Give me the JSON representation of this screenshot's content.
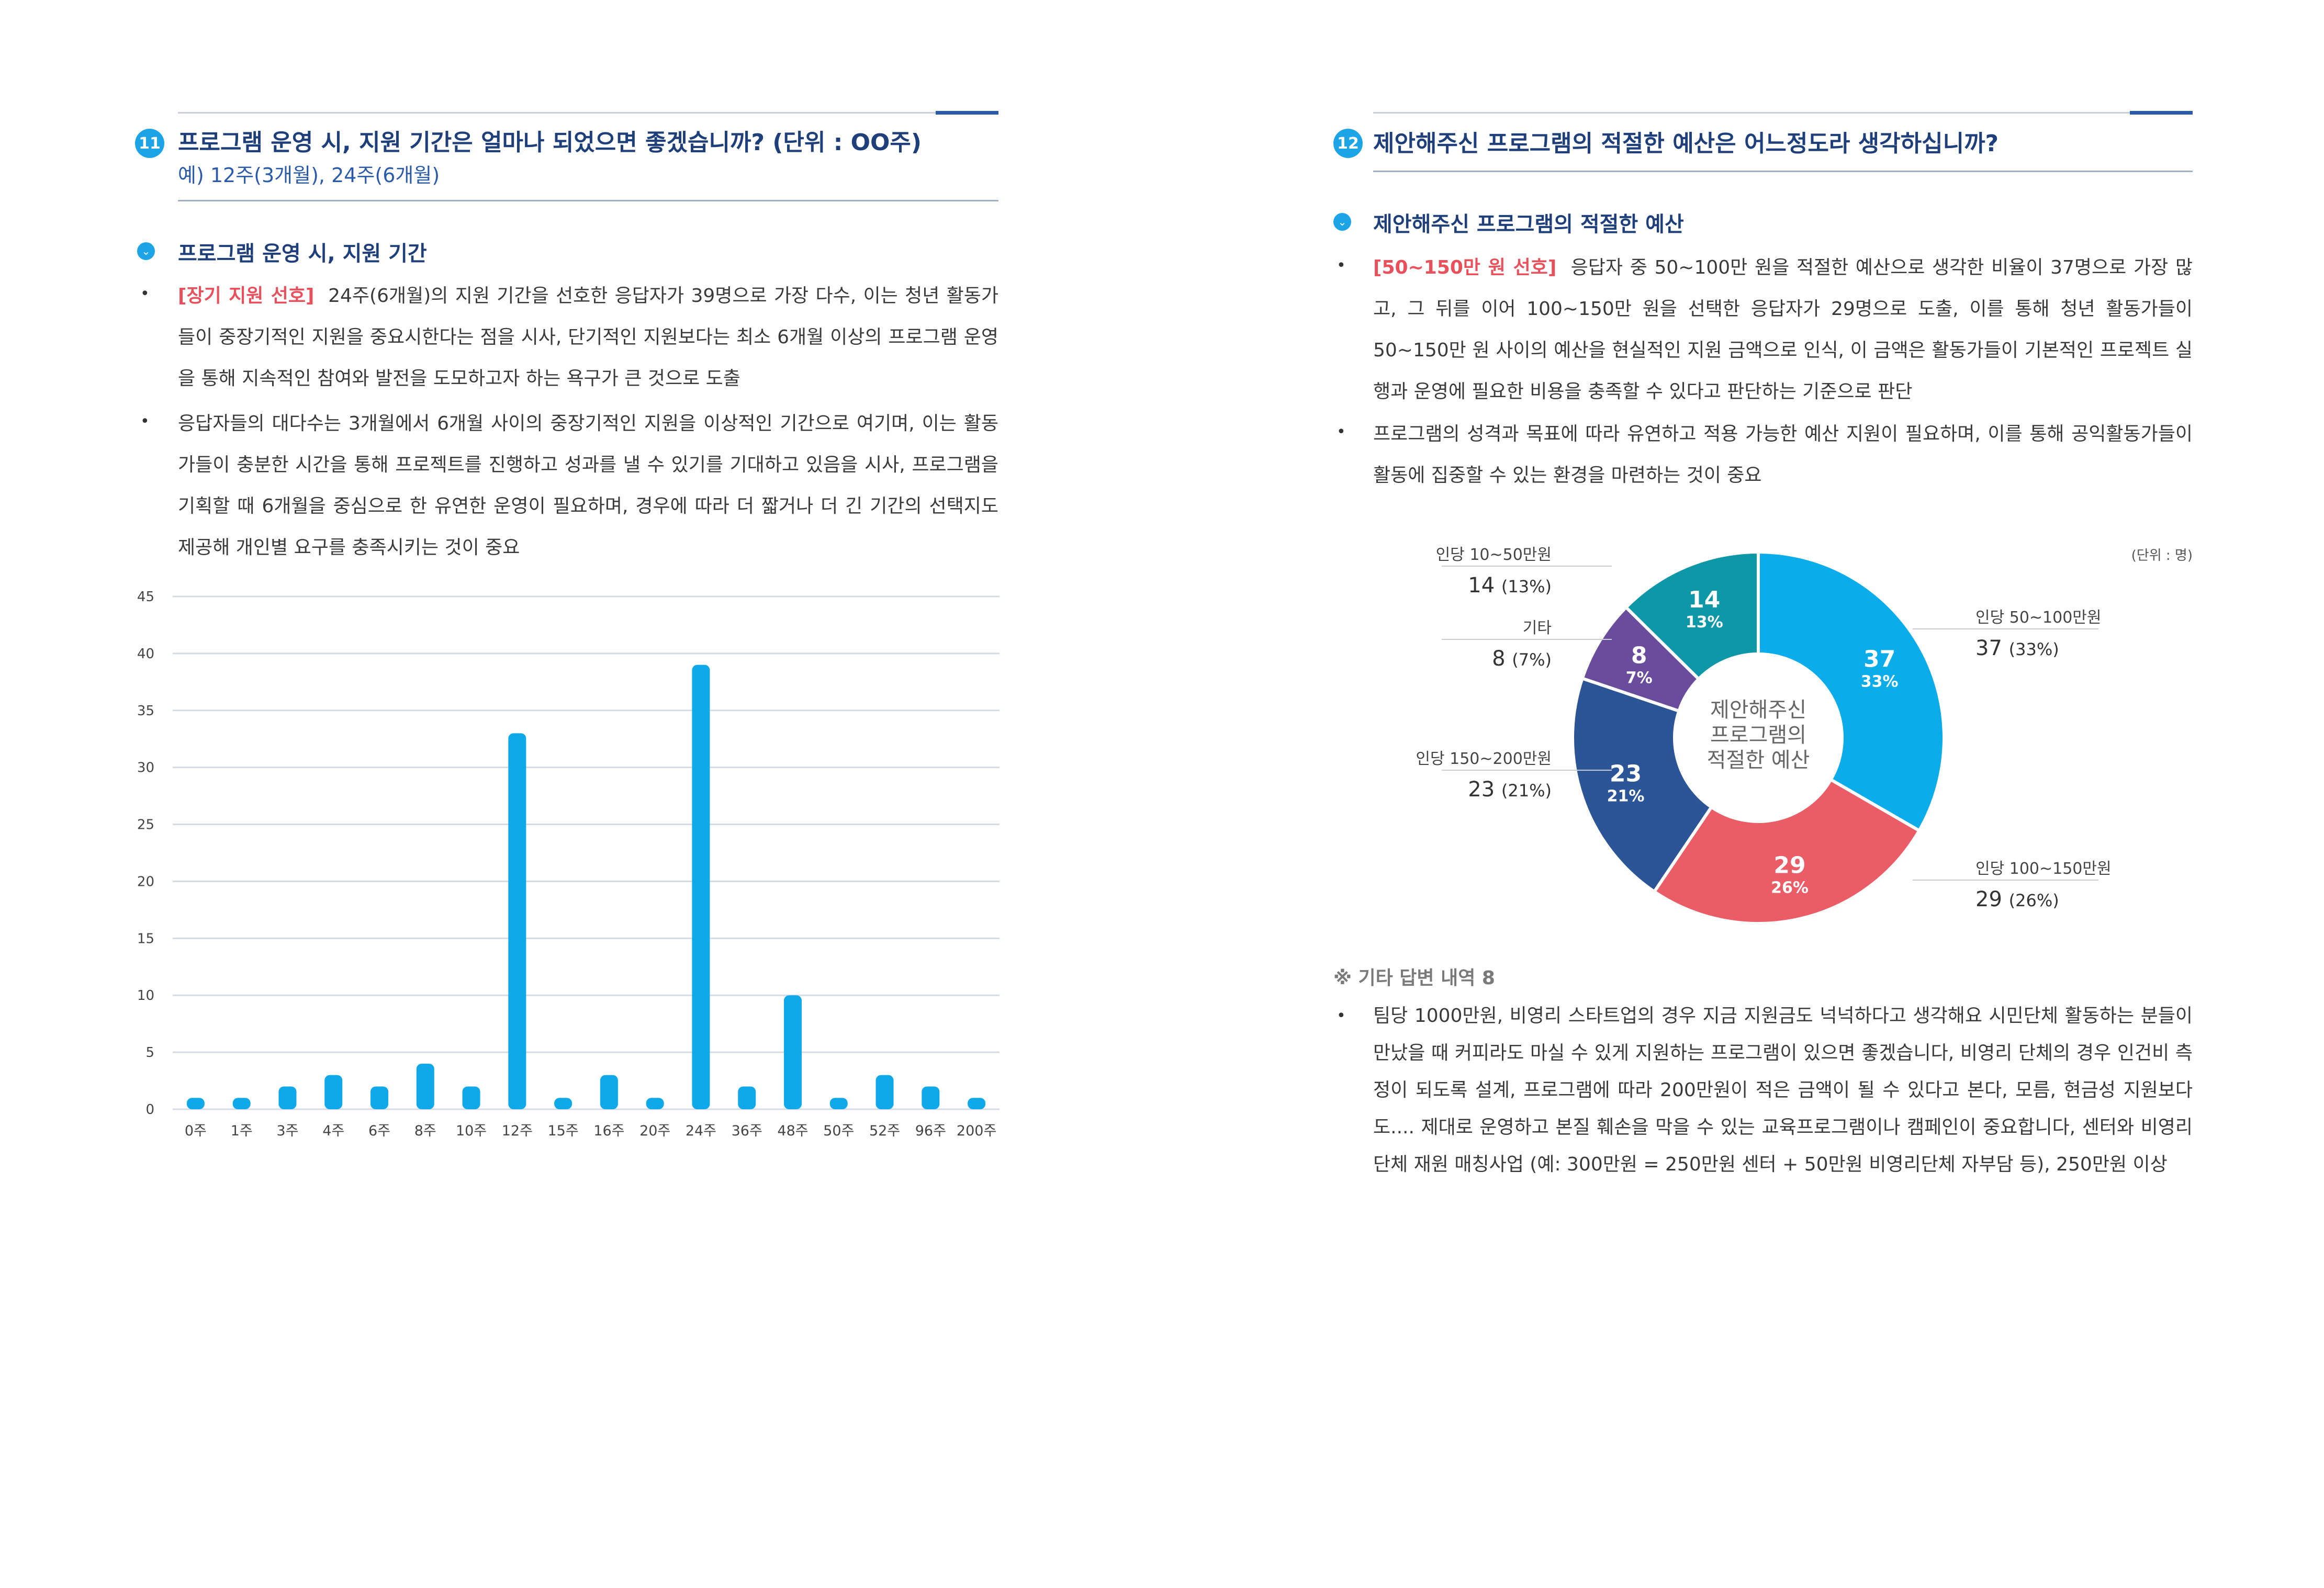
{
  "left": {
    "number": "11",
    "title": "프로그램 운영 시, 지원 기간은 얼마나 되었으면 좋겠습니까? (단위 : OO주)",
    "subtitle": "예) 12주(3개월), 24주(6개월)",
    "section_title": "프로그램 운영 시, 지원 기간",
    "bullets": [
      {
        "highlight": "[장기 지원 선호]",
        "text": "24주(6개월)의 지원 기간을 선호한 응답자가 39명으로 가장 다수, 이는 청년 활동가들이 중장기적인 지원을 중요시한다는 점을 시사, 단기적인 지원보다는 최소 6개월 이상의 프로그램 운영을 통해 지속적인 참여와 발전을 도모하고자 하는 욕구가 큰 것으로 도출"
      },
      {
        "highlight": "",
        "text": "응답자들의 대다수는 3개월에서 6개월 사이의 중장기적인 지원을 이상적인 기간으로 여기며, 이는 활동가들이 충분한 시간을 통해 프로젝트를 진행하고 성과를 낼 수 있기를 기대하고 있음을 시사, 프로그램을 기획할 때 6개월을 중심으로 한 유연한 운영이 필요하며, 경우에 따라 더 짧거나 더 긴 기간의 선택지도 제공해 개인별 요구를 충족시키는 것이 중요"
      }
    ]
  },
  "right": {
    "number": "12",
    "title": "제안해주신 프로그램의 적절한 예산은 어느정도라 생각하십니까?",
    "section_title": "제안해주신 프로그램의 적절한 예산",
    "bullets": [
      {
        "highlight": "[50~150만 원 선호]",
        "text": "응답자 중 50~100만 원을 적절한 예산으로 생각한 비율이 37명으로 가장 많고, 그 뒤를 이어 100~150만 원을 선택한 응답자가 29명으로 도출, 이를 통해 청년 활동가들이 50~150만 원 사이의 예산을 현실적인 지원 금액으로 인식, 이 금액은 활동가들이 기본적인 프로젝트 실행과 운영에 필요한 비용을 충족할 수 있다고 판단하는 기준으로 판단"
      },
      {
        "highlight": "",
        "text": "프로그램의 성격과 목표에 따라 유연하고 적용 가능한 예산 지원이 필요하며, 이를 통해 공익활동가들이 활동에 집중할 수 있는 환경을 마련하는 것이 중요"
      }
    ],
    "note_title": "※ 기타 답변 내역 8",
    "note_text": "팀당 1000만원, 비영리 스타트업의 경우 지금 지원금도 넉넉하다고 생각해요 시민단체 활동하는 분들이 만났을 때 커피라도 마실 수 있게 지원하는 프로그램이 있으면 좋겠습니다, 비영리 단체의 경우 인건비 측정이 되도록 설계, 프로그램에 따라 200만원이 적은 금액이 될 수 있다고 본다, 모름, 현금성 지원보다도.... 제대로 운영하고 본질 훼손을 막을 수 있는 교육프로그램이나 캠페인이 중요합니다, 센터와 비영리 단체 재원 매칭사업 (예: 300만원 = 250만원 센터 + 50만원 비영리단체 자부담 등), 250만원 이상"
  },
  "chart_data": [
    {
      "type": "bar",
      "categories": [
        "0주",
        "1주",
        "3주",
        "4주",
        "6주",
        "8주",
        "10주",
        "12주",
        "15주",
        "16주",
        "20주",
        "24주",
        "36주",
        "48주",
        "50주",
        "52주",
        "96주",
        "200주"
      ],
      "values": [
        1,
        1,
        2,
        3,
        2,
        4,
        2,
        33,
        1,
        3,
        1,
        39,
        2,
        10,
        1,
        3,
        2,
        1
      ],
      "yticks": [
        "0",
        "5",
        "10",
        "15",
        "20",
        "25",
        "30",
        "35",
        "40",
        "45"
      ],
      "ylim": [
        0,
        45
      ],
      "grid": true,
      "color": "#0fa8e8"
    },
    {
      "type": "pie",
      "unit_label": "(단위 : 명)",
      "center_label": [
        "제안해주신",
        "프로그램의",
        "적절한 예산"
      ],
      "slices": [
        {
          "label": "인당 50~100만원",
          "value": 37,
          "percent": "33%",
          "legend_value": "37",
          "legend_pct": "(33%)",
          "color": "#0aace9"
        },
        {
          "label": "인당 100~150만원",
          "value": 29,
          "percent": "26%",
          "legend_value": "29",
          "legend_pct": "(26%)",
          "color": "#ea5c66"
        },
        {
          "label": "인당 150~200만원",
          "value": 23,
          "percent": "21%",
          "legend_value": "23",
          "legend_pct": "(21%)",
          "color": "#2c5597"
        },
        {
          "label": "기타",
          "value": 8,
          "percent": "7%",
          "legend_value": "8",
          "legend_pct": "(7%)",
          "color": "#6a4c9c"
        },
        {
          "label": "인당 10~50만원",
          "value": 14,
          "percent": "13%",
          "legend_value": "14",
          "legend_pct": "(13%)",
          "color": "#0e97a6"
        }
      ]
    }
  ]
}
